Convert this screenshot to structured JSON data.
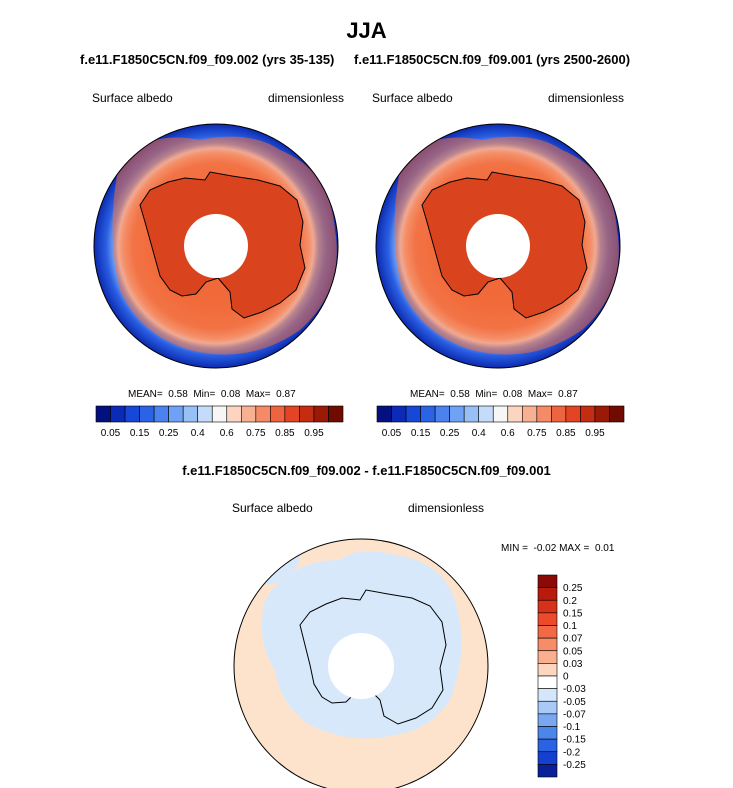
{
  "page": {
    "season": "JJA"
  },
  "chart_data": [
    {
      "type": "heatmap",
      "title": "f.e11.F1850C5CN.f09_f09.002 (yrs 35-135)",
      "left_label": "Surface albedo",
      "right_label": "dimensionless",
      "projection": "south-polar-stereographic",
      "stats": {
        "mean_label": "MEAN=",
        "mean": "0.58",
        "min_label": "Min=",
        "min": "0.08",
        "max_label": "Max=",
        "max": "0.87"
      },
      "colorbar": {
        "orientation": "horizontal",
        "tick_labels": [
          "0.05",
          "0.15",
          "0.25",
          "0.4",
          "0.6",
          "0.75",
          "0.85",
          "0.95"
        ],
        "colors": [
          "#05107f",
          "#0b2ab8",
          "#1747d6",
          "#2a63e6",
          "#4a83ef",
          "#6fa2f4",
          "#98c0f7",
          "#c4dcfa",
          "#f6f6f6",
          "#fbd5c0",
          "#f8b093",
          "#f48a66",
          "#ef6440",
          "#e34423",
          "#c52d12",
          "#9b1a07",
          "#6f0b00"
        ]
      }
    },
    {
      "type": "heatmap",
      "title": "f.e11.F1850C5CN.f09_f09.001 (yrs 2500-2600)",
      "left_label": "Surface albedo",
      "right_label": "dimensionless",
      "projection": "south-polar-stereographic",
      "stats": {
        "mean_label": "MEAN=",
        "mean": "0.58",
        "min_label": "Min=",
        "min": "0.08",
        "max_label": "Max=",
        "max": "0.87"
      },
      "colorbar": {
        "orientation": "horizontal",
        "tick_labels": [
          "0.05",
          "0.15",
          "0.25",
          "0.4",
          "0.6",
          "0.75",
          "0.85",
          "0.95"
        ],
        "colors": [
          "#05107f",
          "#0b2ab8",
          "#1747d6",
          "#2a63e6",
          "#4a83ef",
          "#6fa2f4",
          "#98c0f7",
          "#c4dcfa",
          "#f6f6f6",
          "#fbd5c0",
          "#f8b093",
          "#f48a66",
          "#ef6440",
          "#e34423",
          "#c52d12",
          "#9b1a07",
          "#6f0b00"
        ]
      }
    },
    {
      "type": "heatmap",
      "title": "f.e11.F1850C5CN.f09_f09.002 - f.e11.F1850C5CN.f09_f09.001",
      "left_label": "Surface albedo",
      "right_label": "dimensionless",
      "projection": "south-polar-stereographic",
      "stats": {
        "min_label": "MIN =",
        "min": "-0.02",
        "max_label": "MAX =",
        "max": "0.01"
      },
      "colorbar": {
        "orientation": "vertical",
        "tick_labels": [
          "0.25",
          "0.2",
          "0.15",
          "0.1",
          "0.07",
          "0.05",
          "0.03",
          "0",
          "-0.03",
          "-0.05",
          "-0.07",
          "-0.1",
          "-0.15",
          "-0.2",
          "-0.25"
        ],
        "colors": [
          "#8b0a05",
          "#b81a0b",
          "#d9301a",
          "#ec4a2a",
          "#f26a45",
          "#f68c68",
          "#f9b08f",
          "#fcd6be",
          "#ffffff",
          "#d5e6fb",
          "#a9c9f6",
          "#7aa8f0",
          "#4d86e9",
          "#2a62e1",
          "#1540cf",
          "#0a1f98"
        ]
      }
    }
  ]
}
